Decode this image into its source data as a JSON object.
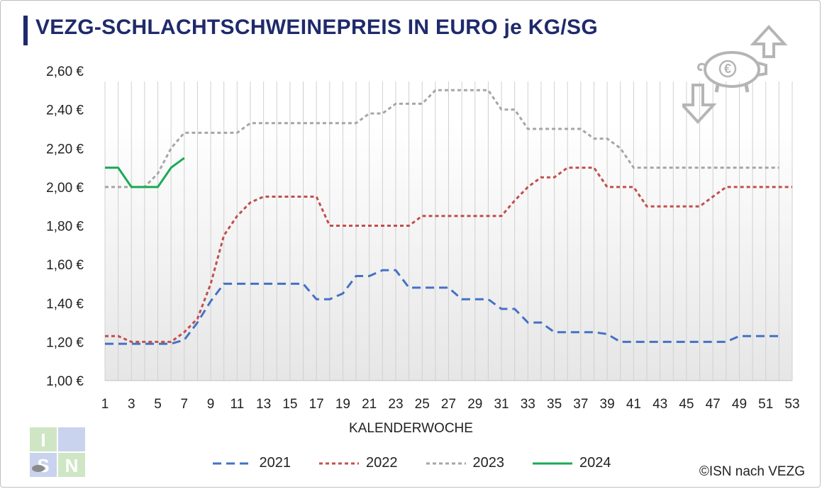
{
  "title": "VEZG-SCHLACHTSCHWEINEPREIS IN EURO je KG/SG",
  "copyright": "©ISN nach VEZG",
  "logo_text": "ISN",
  "chart_data": {
    "type": "line",
    "title": "VEZG-SCHLACHTSCHWEINEPREIS IN EURO je KG/SG",
    "xlabel": "KALENDERWOCHE",
    "ylabel": "",
    "xlim": [
      1,
      53
    ],
    "ylim": [
      1.0,
      2.6
    ],
    "x_ticks": [
      "1",
      "3",
      "5",
      "7",
      "9",
      "11",
      "13",
      "15",
      "17",
      "19",
      "21",
      "23",
      "25",
      "27",
      "29",
      "31",
      "33",
      "35",
      "37",
      "39",
      "41",
      "43",
      "45",
      "47",
      "49",
      "51",
      "53"
    ],
    "y_ticks": [
      "1,00 €",
      "1,20 €",
      "1,40 €",
      "1,60 €",
      "1,80 €",
      "2,00 €",
      "2,20 €",
      "2,40 €",
      "2,60 €"
    ],
    "grid": "vertical",
    "legend_position": "bottom",
    "series": [
      {
        "name": "2021",
        "color": "#4472c4",
        "style": "dashed",
        "x": [
          1,
          2,
          3,
          4,
          5,
          6,
          7,
          8,
          9,
          10,
          11,
          12,
          13,
          14,
          15,
          16,
          17,
          18,
          19,
          20,
          21,
          22,
          23,
          24,
          25,
          26,
          27,
          28,
          29,
          30,
          31,
          32,
          33,
          34,
          35,
          36,
          37,
          38,
          39,
          40,
          41,
          42,
          43,
          44,
          45,
          46,
          47,
          48,
          49,
          50,
          51,
          52
        ],
        "values": [
          1.19,
          1.19,
          1.19,
          1.19,
          1.19,
          1.19,
          1.21,
          1.3,
          1.41,
          1.5,
          1.5,
          1.5,
          1.5,
          1.5,
          1.5,
          1.5,
          1.42,
          1.42,
          1.45,
          1.54,
          1.54,
          1.57,
          1.57,
          1.48,
          1.48,
          1.48,
          1.48,
          1.42,
          1.42,
          1.42,
          1.37,
          1.37,
          1.3,
          1.3,
          1.25,
          1.25,
          1.25,
          1.25,
          1.24,
          1.2,
          1.2,
          1.2,
          1.2,
          1.2,
          1.2,
          1.2,
          1.2,
          1.2,
          1.23,
          1.23,
          1.23,
          1.23
        ]
      },
      {
        "name": "2022",
        "color": "#c0504d",
        "style": "dashed",
        "x": [
          1,
          2,
          3,
          4,
          5,
          6,
          7,
          8,
          9,
          10,
          11,
          12,
          13,
          14,
          15,
          16,
          17,
          18,
          19,
          20,
          21,
          22,
          23,
          24,
          25,
          26,
          27,
          28,
          29,
          30,
          31,
          32,
          33,
          34,
          35,
          36,
          37,
          38,
          39,
          40,
          41,
          42,
          43,
          44,
          45,
          46,
          47,
          48,
          49,
          50,
          51,
          52,
          53
        ],
        "values": [
          1.23,
          1.23,
          1.2,
          1.2,
          1.2,
          1.2,
          1.25,
          1.32,
          1.5,
          1.75,
          1.85,
          1.92,
          1.95,
          1.95,
          1.95,
          1.95,
          1.95,
          1.8,
          1.8,
          1.8,
          1.8,
          1.8,
          1.8,
          1.8,
          1.85,
          1.85,
          1.85,
          1.85,
          1.85,
          1.85,
          1.85,
          1.93,
          2.0,
          2.05,
          2.05,
          2.1,
          2.1,
          2.1,
          2.0,
          2.0,
          2.0,
          1.9,
          1.9,
          1.9,
          1.9,
          1.9,
          1.95,
          2.0,
          2.0,
          2.0,
          2.0,
          2.0,
          2.0
        ]
      },
      {
        "name": "2023",
        "color": "#a6a6a6",
        "style": "dashed",
        "x": [
          1,
          2,
          3,
          4,
          5,
          6,
          7,
          8,
          9,
          10,
          11,
          12,
          13,
          14,
          15,
          16,
          17,
          18,
          19,
          20,
          21,
          22,
          23,
          24,
          25,
          26,
          27,
          28,
          29,
          30,
          31,
          32,
          33,
          34,
          35,
          36,
          37,
          38,
          39,
          40,
          41,
          42,
          43,
          44,
          45,
          46,
          47,
          48,
          49,
          50,
          51,
          52
        ],
        "values": [
          2.0,
          2.0,
          2.0,
          2.0,
          2.07,
          2.2,
          2.28,
          2.28,
          2.28,
          2.28,
          2.28,
          2.33,
          2.33,
          2.33,
          2.33,
          2.33,
          2.33,
          2.33,
          2.33,
          2.33,
          2.38,
          2.38,
          2.43,
          2.43,
          2.43,
          2.5,
          2.5,
          2.5,
          2.5,
          2.5,
          2.4,
          2.4,
          2.3,
          2.3,
          2.3,
          2.3,
          2.3,
          2.25,
          2.25,
          2.2,
          2.1,
          2.1,
          2.1,
          2.1,
          2.1,
          2.1,
          2.1,
          2.1,
          2.1,
          2.1,
          2.1,
          2.1
        ]
      },
      {
        "name": "2024",
        "color": "#1aaa55",
        "style": "solid",
        "x": [
          1,
          2,
          3,
          4,
          5,
          6,
          7
        ],
        "values": [
          2.1,
          2.1,
          2.0,
          2.0,
          2.0,
          2.1,
          2.15
        ]
      }
    ]
  }
}
